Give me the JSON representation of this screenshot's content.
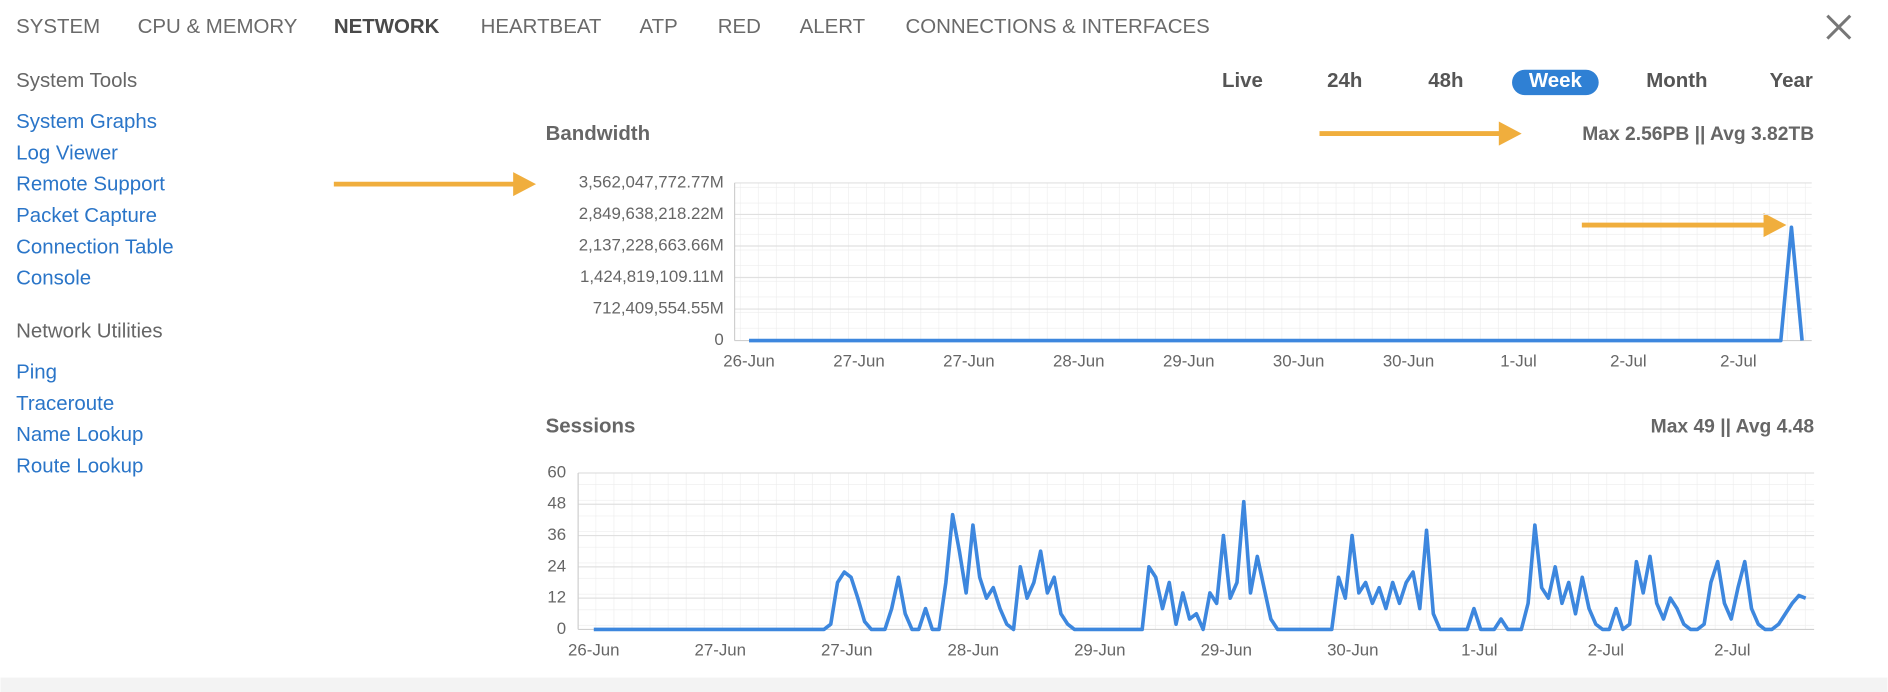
{
  "tabs": [
    "SYSTEM",
    "CPU & MEMORY",
    "NETWORK",
    "HEARTBEAT",
    "ATP",
    "RED",
    "ALERT",
    "CONNECTIONS & INTERFACES"
  ],
  "sidebar": [
    {
      "heading": "System Tools",
      "links": [
        "System Graphs",
        "Log Viewer",
        "Remote Support",
        "Packet Capture",
        "Connection Table",
        "Console"
      ]
    },
    {
      "heading": "Network Utilities",
      "links": [
        "Ping",
        "Traceroute",
        "Name Lookup",
        "Route Lookup"
      ]
    }
  ],
  "ranges": [
    "Live",
    "24h",
    "48h",
    "Week",
    "Month",
    "Year"
  ],
  "chart_data": [
    {
      "type": "line",
      "title": "Bandwidth",
      "stats": "Max 2.56PB || Avg 3.82TB",
      "color": "#3d87de",
      "grid": true,
      "x_tick_labels": [
        "26-Jun",
        "27-Jun",
        "27-Jun",
        "28-Jun",
        "29-Jun",
        "30-Jun",
        "30-Jun",
        "1-Jul",
        "2-Jul",
        "2-Jul"
      ],
      "ylim": [
        0,
        3562047772.77
      ],
      "yticks": [
        0,
        {
          "value": 712409554.55,
          "label": "712,409,554.55M"
        },
        {
          "value": 1424819109.11,
          "label": "1,424,819,109.11M"
        },
        {
          "value": 2137228663.66,
          "label": "2,137,228,663.66M"
        },
        {
          "value": 2849638218.22,
          "label": "2,849,638,218.22M"
        },
        {
          "value": 3562047772.77,
          "label": "3,562,047,772.77M"
        }
      ],
      "values": [
        0,
        0,
        0,
        0,
        0,
        0,
        0,
        0,
        0,
        0,
        0,
        0,
        0,
        0,
        0,
        0,
        0,
        0,
        0,
        0,
        0,
        0,
        0,
        0,
        0,
        0,
        0,
        0,
        0,
        0,
        0,
        0,
        0,
        0,
        0,
        0,
        0,
        0,
        0,
        0,
        0,
        0,
        0,
        0,
        0,
        0,
        0,
        0,
        0,
        0,
        0,
        0,
        0,
        0,
        0,
        0,
        0,
        0,
        0,
        0,
        0,
        0,
        0,
        0,
        0,
        0,
        0,
        0,
        0,
        0,
        0,
        0,
        0,
        0,
        0,
        0,
        0,
        0,
        0,
        0,
        0,
        0,
        0,
        0,
        0,
        0,
        0,
        0,
        0,
        0,
        0,
        0,
        0,
        0,
        0,
        0,
        0,
        0,
        2560000000,
        0
      ]
    },
    {
      "type": "line",
      "title": "Sessions",
      "stats": "Max 49 || Avg 4.48",
      "color": "#3d87de",
      "grid": true,
      "x_tick_labels": [
        "26-Jun",
        "27-Jun",
        "27-Jun",
        "28-Jun",
        "29-Jun",
        "29-Jun",
        "30-Jun",
        "1-Jul",
        "2-Jul",
        "2-Jul"
      ],
      "ylim": [
        0,
        60
      ],
      "yticks": [
        0,
        12,
        24,
        36,
        48,
        60
      ],
      "values": [
        0,
        0,
        0,
        0,
        0,
        0,
        0,
        0,
        0,
        0,
        0,
        0,
        0,
        0,
        0,
        0,
        0,
        0,
        0,
        0,
        0,
        0,
        0,
        0,
        0,
        0,
        0,
        0,
        0,
        0,
        0,
        0,
        0,
        0,
        0,
        2,
        18,
        22,
        20,
        12,
        3,
        0,
        0,
        0,
        8,
        20,
        6,
        0,
        0,
        8,
        0,
        0,
        18,
        44,
        30,
        14,
        40,
        20,
        12,
        16,
        8,
        2,
        0,
        24,
        12,
        18,
        30,
        14,
        20,
        6,
        2,
        0,
        0,
        0,
        0,
        0,
        0,
        0,
        0,
        0,
        0,
        0,
        24,
        20,
        8,
        18,
        2,
        14,
        4,
        6,
        0,
        14,
        10,
        36,
        12,
        18,
        49,
        14,
        28,
        16,
        4,
        0,
        0,
        0,
        0,
        0,
        0,
        0,
        0,
        0,
        20,
        12,
        36,
        14,
        18,
        10,
        16,
        8,
        18,
        10,
        18,
        22,
        8,
        38,
        6,
        0,
        0,
        0,
        0,
        0,
        8,
        0,
        0,
        0,
        4,
        0,
        0,
        0,
        10,
        40,
        16,
        12,
        24,
        10,
        18,
        6,
        20,
        8,
        2,
        0,
        0,
        8,
        0,
        2,
        26,
        14,
        28,
        10,
        4,
        12,
        8,
        2,
        0,
        0,
        2,
        18,
        26,
        10,
        4,
        16,
        26,
        8,
        2,
        0,
        0,
        2,
        6,
        10,
        13,
        12
      ]
    }
  ]
}
